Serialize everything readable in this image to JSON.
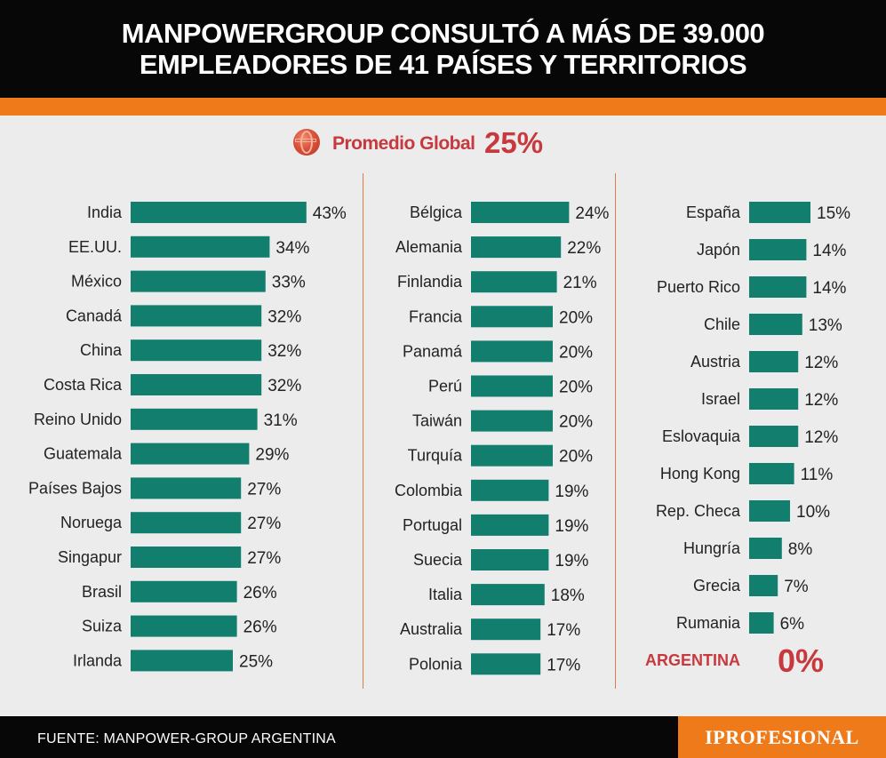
{
  "header": {
    "line1": "MANPOWERGROUP CONSULTÓ A MÁS DE 39.000",
    "line2": "EMPLEADORES DE 41 PAÍSES Y TERRITORIOS"
  },
  "global_average": {
    "label": "Promedio Global",
    "value": "25%"
  },
  "footer": {
    "source": "FUENTE: MANPOWER-GROUP ARGENTINA",
    "brand": "IPROFESIONAL"
  },
  "colors": {
    "bar": "#127e6e",
    "accent_red": "#c8393e",
    "orange": "#ef7a1a",
    "header_bg": "#070707",
    "background": "#ececec"
  },
  "chart_data": {
    "type": "bar",
    "orientation": "horizontal",
    "unit": "%",
    "categories": [
      "India",
      "EE.UU.",
      "México",
      "Canadá",
      "China",
      "Costa Rica",
      "Reino Unido",
      "Guatemala",
      "Países Bajos",
      "Noruega",
      "Singapur",
      "Brasil",
      "Suiza",
      "Irlanda",
      "Bélgica",
      "Alemania",
      "Finlandia",
      "Francia",
      "Panamá",
      "Perú",
      "Taiwán",
      "Turquía",
      "Colombia",
      "Portugal",
      "Suecia",
      "Italia",
      "Australia",
      "Polonia",
      "España",
      "Japón",
      "Puerto Rico",
      "Chile",
      "Austria",
      "Israel",
      "Eslovaquia",
      "Hong Kong",
      "Rep. Checa",
      "Hungría",
      "Grecia",
      "Rumania",
      "ARGENTINA"
    ],
    "values": [
      43,
      34,
      33,
      32,
      32,
      32,
      31,
      29,
      27,
      27,
      27,
      26,
      26,
      25,
      24,
      22,
      21,
      20,
      20,
      20,
      20,
      20,
      19,
      19,
      19,
      18,
      17,
      17,
      15,
      14,
      14,
      13,
      12,
      12,
      12,
      11,
      10,
      8,
      7,
      6,
      0
    ],
    "labels": [
      "43%",
      "34%",
      "33%",
      "32%",
      "32%",
      "32%",
      "31%",
      "29%",
      "27%",
      "27%",
      "27%",
      "26%",
      "26%",
      "25%",
      "24%",
      "22%",
      "21%",
      "20%",
      "20%",
      "20%",
      "20%",
      "20%",
      "19%",
      "19%",
      "19%",
      "18%",
      "17%",
      "17%",
      "15%",
      "14%",
      "14%",
      "13%",
      "12%",
      "12%",
      "12%",
      "11%",
      "10%",
      "8%",
      "7%",
      "6%",
      "0%"
    ],
    "columns": [
      14,
      14,
      13
    ],
    "highlight": "ARGENTINA"
  }
}
